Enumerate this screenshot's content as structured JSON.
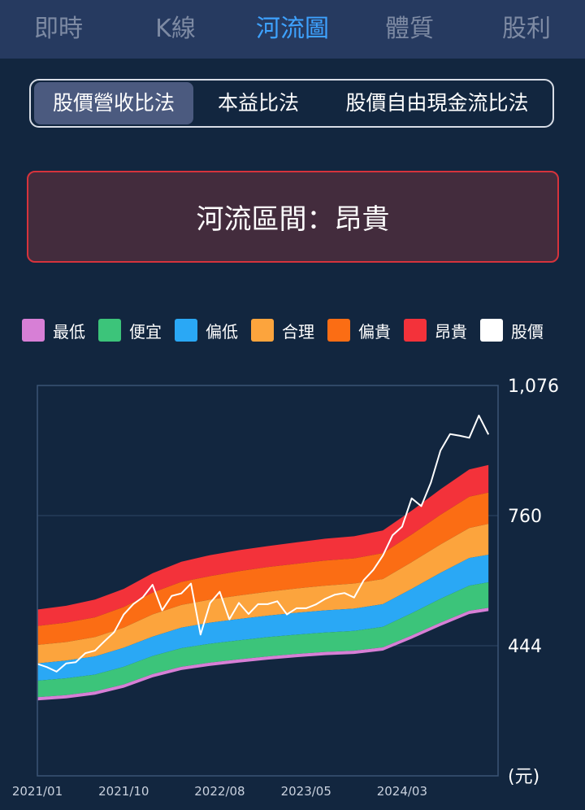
{
  "nav": {
    "tabs": [
      {
        "label": "即時",
        "active": false
      },
      {
        "label": "K線",
        "active": false
      },
      {
        "label": "河流圖",
        "active": true
      },
      {
        "label": "體質",
        "active": false
      },
      {
        "label": "股利",
        "active": false
      }
    ]
  },
  "methods": {
    "options": [
      "股價營收比法",
      "本益比法",
      "股價自由現金流比法"
    ],
    "selected": "股價營收比法"
  },
  "zone": {
    "text": "河流區間：昂貴"
  },
  "legend": [
    {
      "label": "最低",
      "color": "#d77fd6"
    },
    {
      "label": "便宜",
      "color": "#3cc47a"
    },
    {
      "label": "偏低",
      "color": "#2aa8f5"
    },
    {
      "label": "合理",
      "color": "#fca43d"
    },
    {
      "label": "偏貴",
      "color": "#fb6d14"
    },
    {
      "label": "昂貴",
      "color": "#f3323a"
    },
    {
      "label": "股價",
      "color": "#ffffff"
    }
  ],
  "chart_data": {
    "type": "area",
    "unit_label": "(元)",
    "y_ticks": [
      "1,076",
      "760",
      "444"
    ],
    "y_tick_values": [
      1076,
      760,
      444
    ],
    "ylim": [
      128,
      1076
    ],
    "x_ticks": [
      "2021/01",
      "2021/10",
      "2022/08",
      "2023/05",
      "2024/03"
    ],
    "x_tick_values": [
      "2021-01",
      "2021-10",
      "2022-08",
      "2023-05",
      "2024-03"
    ],
    "x": [
      "2021-01",
      "2021-04",
      "2021-07",
      "2021-10",
      "2022-01",
      "2022-04",
      "2022-07",
      "2022-10",
      "2023-01",
      "2023-04",
      "2023-07",
      "2023-10",
      "2024-01",
      "2024-04",
      "2024-07",
      "2024-10",
      "2024-12"
    ],
    "band_boundaries": [
      {
        "name": "最低",
        "values": [
          319,
          324,
          333,
          350,
          375,
          393,
          403,
          411,
          418,
          424,
          429,
          432,
          440,
          469,
          500,
          529,
          536
        ]
      },
      {
        "name": "便宜",
        "values": [
          359,
          365,
          374,
          393,
          419,
          438,
          449,
          457,
          465,
          471,
          476,
          480,
          490,
          523,
          558,
          590,
          598
        ]
      },
      {
        "name": "偏低",
        "values": [
          401,
          408,
          418,
          439,
          466,
          488,
          500,
          509,
          517,
          524,
          530,
          534,
          545,
          582,
          621,
          657,
          665
        ]
      },
      {
        "name": "合理",
        "values": [
          446,
          453,
          465,
          488,
          520,
          543,
          556,
          566,
          575,
          583,
          590,
          595,
          606,
          647,
          690,
          730,
          740
        ]
      },
      {
        "name": "偏貴",
        "values": [
          492,
          500,
          513,
          538,
          573,
          599,
          613,
          625,
          635,
          643,
          651,
          656,
          669,
          714,
          762,
          806,
          816
        ]
      },
      {
        "name": "昂貴",
        "values": [
          532,
          541,
          556,
          582,
          620,
          648,
          664,
          676,
          686,
          695,
          704,
          710,
          724,
          772,
          824,
          872,
          883
        ]
      }
    ],
    "price": {
      "name": "股價",
      "x": [
        "2021-01",
        "2021-02",
        "2021-03",
        "2021-04",
        "2021-05",
        "2021-06",
        "2021-07",
        "2021-08",
        "2021-09",
        "2021-10",
        "2021-11",
        "2021-12",
        "2022-01",
        "2022-02",
        "2022-03",
        "2022-04",
        "2022-05",
        "2022-06",
        "2022-07",
        "2022-08",
        "2022-09",
        "2022-10",
        "2022-11",
        "2022-12",
        "2023-01",
        "2023-02",
        "2023-03",
        "2023-04",
        "2023-05",
        "2023-06",
        "2023-07",
        "2023-08",
        "2023-09",
        "2023-10",
        "2023-11",
        "2023-12",
        "2024-01",
        "2024-02",
        "2024-03",
        "2024-04",
        "2024-05",
        "2024-06",
        "2024-07",
        "2024-08",
        "2024-09",
        "2024-10",
        "2024-11",
        "2024-12"
      ],
      "values": [
        400,
        392,
        381,
        401,
        404,
        426,
        432,
        455,
        477,
        520,
        545,
        562,
        592,
        530,
        565,
        571,
        595,
        471,
        548,
        575,
        508,
        548,
        521,
        545,
        545,
        552,
        520,
        535,
        535,
        544,
        558,
        568,
        572,
        561,
        603,
        628,
        663,
        712,
        733,
        802,
        783,
        840,
        918,
        958,
        954,
        949,
        1003,
        957
      ]
    }
  }
}
